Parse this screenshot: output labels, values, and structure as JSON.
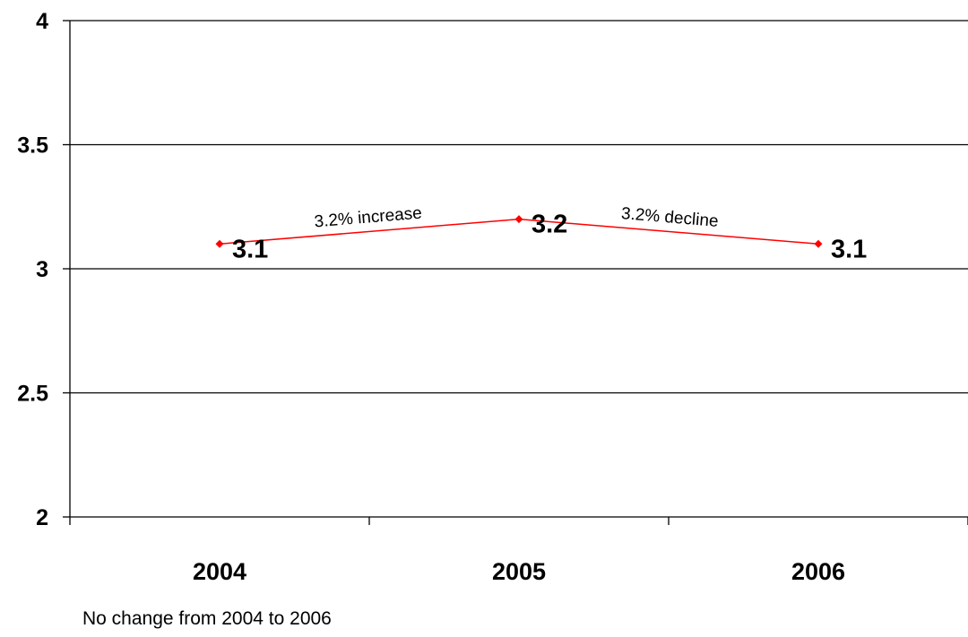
{
  "chart_data": {
    "type": "line",
    "categories": [
      "2004",
      "2005",
      "2006"
    ],
    "series": [
      {
        "values": [
          3.1,
          3.2,
          3.1
        ],
        "color": "#ff0000",
        "marker": "diamond"
      }
    ],
    "data_labels": [
      "3.1",
      "3.2",
      "3.1"
    ],
    "ylim": [
      2,
      4
    ],
    "yticks": [
      "2",
      "2.5",
      "3",
      "3.5",
      "4"
    ],
    "grid": true,
    "legend": "none",
    "annotations": [
      {
        "text": "3.2% increase"
      },
      {
        "text": "3.2% decline"
      }
    ]
  },
  "footnote": "No change from 2004 to 2006"
}
